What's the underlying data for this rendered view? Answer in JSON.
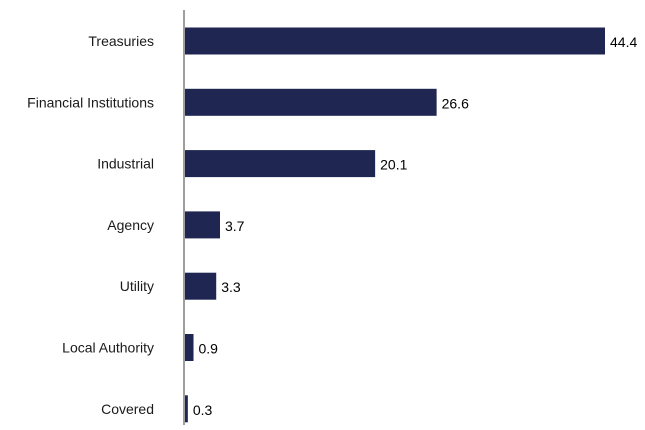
{
  "chart_data": {
    "type": "bar",
    "orientation": "horizontal",
    "categories": [
      "Treasuries",
      "Financial Institutions",
      "Industrial",
      "Agency",
      "Utility",
      "Local Authority",
      "Covered"
    ],
    "values": [
      44.4,
      26.6,
      20.1,
      3.7,
      3.3,
      0.9,
      0.3
    ],
    "value_labels": [
      "44.4",
      "26.6",
      "20.1",
      "3.7",
      "3.3",
      "0.9",
      "0.3"
    ],
    "title": "",
    "xlabel": "",
    "ylabel": "",
    "xlim": [
      0,
      46
    ],
    "grid": false,
    "legend": "none",
    "colors": {
      "bar": "#1f2651",
      "axis": "#7f7f7f",
      "text": "#1a1a1a"
    }
  }
}
